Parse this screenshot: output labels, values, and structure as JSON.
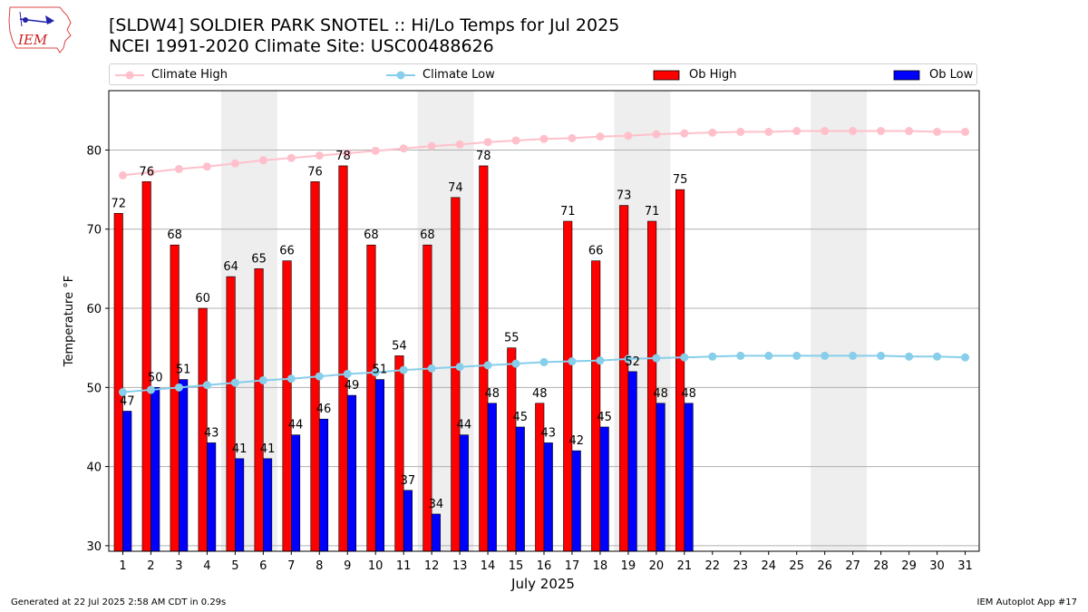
{
  "header": {
    "title_line1": "[SLDW4] SOLDIER PARK SNOTEL :: Hi/Lo Temps for Jul 2025",
    "title_line2": "NCEI 1991-2020 Climate Site: USC00488626",
    "logo_text": "IEM"
  },
  "legend": {
    "climate_high": "Climate High",
    "climate_low": "Climate Low",
    "ob_high": "Ob High",
    "ob_low": "Ob Low"
  },
  "footer": {
    "generated": "Generated at 22 Jul 2025 2:58 AM CDT in 0.29s",
    "app": "IEM Autoplot App #17"
  },
  "colors": {
    "ob_high": "#ff0000",
    "ob_low": "#0000ff",
    "climate_high": "#ffc0cb",
    "climate_low": "#87ceeb",
    "weekend_shade": "#eeeeee",
    "grid": "#b0b0b0"
  },
  "chart_data": {
    "type": "bar",
    "xlabel": "July 2025",
    "ylabel": "Temperature °F",
    "ylim": [
      29.3,
      87.5
    ],
    "yticks": [
      30,
      40,
      50,
      60,
      70,
      80
    ],
    "grid": "horizontal",
    "legend_position": "top",
    "days": [
      1,
      2,
      3,
      4,
      5,
      6,
      7,
      8,
      9,
      10,
      11,
      12,
      13,
      14,
      15,
      16,
      17,
      18,
      19,
      20,
      21,
      22,
      23,
      24,
      25,
      26,
      27,
      28,
      29,
      30,
      31
    ],
    "weekend_shading": [
      [
        5,
        6
      ],
      [
        12,
        13
      ],
      [
        19,
        20
      ],
      [
        26,
        27
      ]
    ],
    "series": [
      {
        "name": "Ob High",
        "kind": "bar",
        "values": [
          72,
          76,
          68,
          60,
          64,
          65,
          66,
          76,
          78,
          68,
          54,
          68,
          74,
          78,
          55,
          48,
          71,
          66,
          73,
          71,
          75
        ],
        "labels": [
          "72",
          "76",
          "68",
          "60",
          "64",
          "65",
          "66",
          "76",
          "78",
          "68",
          "54",
          "68",
          "74",
          "78",
          "55",
          "48",
          "71",
          "66",
          "73",
          "71",
          "75"
        ]
      },
      {
        "name": "Ob Low",
        "kind": "bar",
        "values": [
          47,
          50,
          51,
          43,
          41,
          41,
          44,
          46,
          49,
          51,
          37,
          34,
          44,
          48,
          45,
          43,
          42,
          45,
          52,
          48,
          48
        ],
        "labels": [
          "47",
          "50",
          "51",
          "43",
          "41",
          "41",
          "44",
          "46",
          "49",
          "51",
          "37",
          "34",
          "44",
          "48",
          "45",
          "43",
          "42",
          "45",
          "52",
          "48",
          "48"
        ]
      },
      {
        "name": "Climate High",
        "kind": "line",
        "values": [
          76.8,
          77.2,
          77.6,
          77.9,
          78.3,
          78.7,
          79.0,
          79.3,
          79.6,
          79.9,
          80.2,
          80.5,
          80.7,
          81.0,
          81.2,
          81.4,
          81.5,
          81.7,
          81.8,
          82.0,
          82.1,
          82.2,
          82.3,
          82.3,
          82.4,
          82.4,
          82.4,
          82.4,
          82.4,
          82.3,
          82.3
        ]
      },
      {
        "name": "Climate Low",
        "kind": "line",
        "values": [
          49.4,
          49.7,
          50.0,
          50.3,
          50.6,
          50.9,
          51.1,
          51.4,
          51.7,
          51.9,
          52.2,
          52.4,
          52.6,
          52.8,
          53.0,
          53.2,
          53.3,
          53.4,
          53.6,
          53.7,
          53.8,
          53.9,
          54.0,
          54.0,
          54.0,
          54.0,
          54.0,
          54.0,
          53.9,
          53.9,
          53.8
        ]
      }
    ]
  }
}
